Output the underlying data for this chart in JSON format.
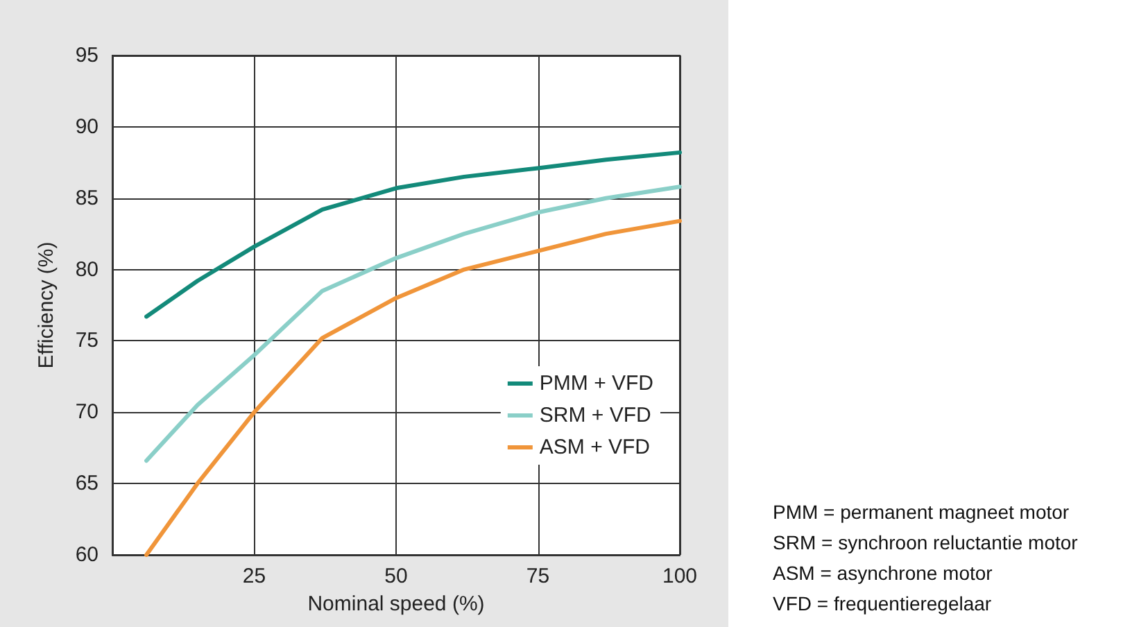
{
  "chart_data": {
    "type": "line",
    "xlabel": "Nominal speed (%)",
    "ylabel": "Efficiency (%)",
    "x": [
      6,
      15,
      25,
      37,
      50,
      62,
      75,
      87,
      100
    ],
    "series": [
      {
        "name": "PMM + VFD",
        "color": "#138a7a",
        "values": [
          76.7,
          79.2,
          81.6,
          84.2,
          85.7,
          86.5,
          87.1,
          87.7,
          88.2
        ]
      },
      {
        "name": "SRM + VFD",
        "color": "#8acfc8",
        "values": [
          66.6,
          70.5,
          74,
          78.5,
          80.8,
          82.5,
          84,
          85,
          85.8
        ]
      },
      {
        "name": "ASM + VFD",
        "color": "#f0953a",
        "values": [
          60,
          65,
          70,
          75.2,
          78,
          80,
          81.3,
          82.5,
          83.4
        ]
      }
    ],
    "xlim": [
      0,
      100
    ],
    "xticks": [
      25,
      50,
      75,
      100
    ],
    "ylim": [
      60,
      95
    ],
    "yticks": [
      60,
      65,
      70,
      75,
      80,
      85,
      90,
      95
    ],
    "grid": true,
    "legend": "bottom right",
    "marker": "none",
    "line_style": "solid",
    "annotations": [
      "PMM = permanent magneet motor",
      "SRM = synchroon reluctantie motor",
      "ASM = asynchrone motor",
      "VFD = frequentieregelaar"
    ]
  }
}
